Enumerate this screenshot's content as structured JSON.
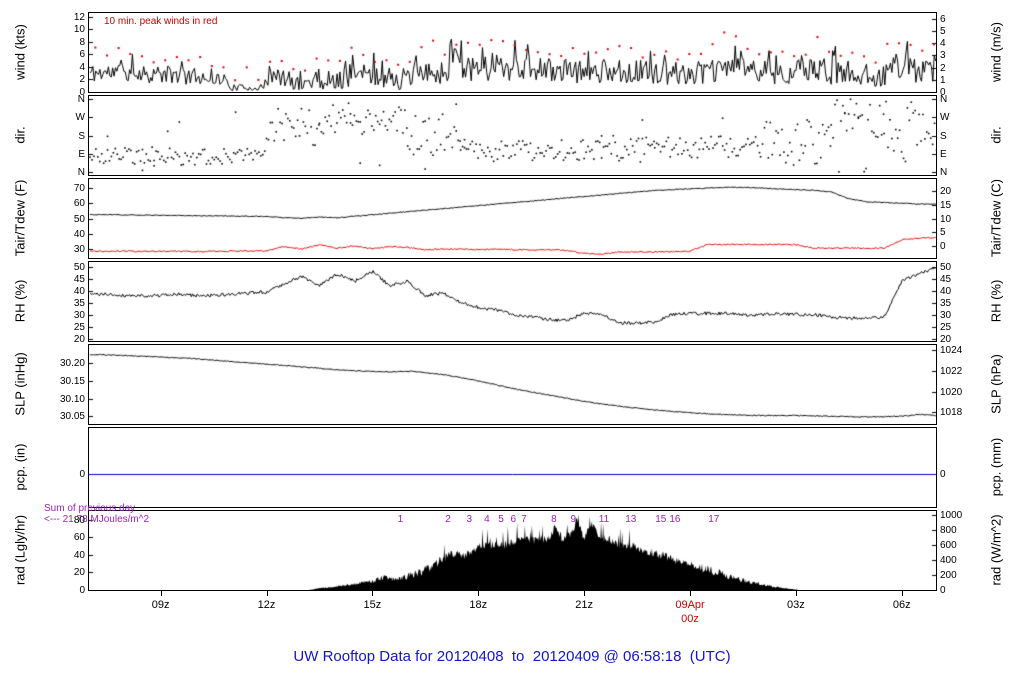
{
  "title": "UW Rooftop Data for 20120408  to  20120409 @ 06:58:18  (UTC)",
  "colors": {
    "title_blue": "#1414cc",
    "annotation_red": "#cc0000",
    "peak_red": "#e00000",
    "purple": "#a020c0",
    "precip_blue": "#0000cc",
    "trace_black": "#000000"
  },
  "chart_data": {
    "type": "line",
    "title": "UW Rooftop Data for 20120408  to  20120409 @ 06:58:18  (UTC)",
    "x_axis": {
      "start": 6.97,
      "end": 30.97,
      "ticks": [
        {
          "h": 9,
          "label": "09z"
        },
        {
          "h": 12,
          "label": "12z"
        },
        {
          "h": 15,
          "label": "15z"
        },
        {
          "h": 18,
          "label": "18z"
        },
        {
          "h": 21,
          "label": "21z"
        },
        {
          "h": 24,
          "label": "09Apr",
          "label2": "00z",
          "color": "#cc0000"
        },
        {
          "h": 27,
          "label": "03z"
        },
        {
          "h": 30,
          "label": "06z"
        }
      ]
    },
    "panels": [
      {
        "id": "wind",
        "ylabel_left": "wind (kts)",
        "ylabel_right": "wind (m/s)",
        "ylim": [
          0,
          12.6
        ],
        "annotation": "10 min. peak winds in red",
        "yticks_left": [
          [
            0,
            "0"
          ],
          [
            2,
            "2"
          ],
          [
            4,
            "4"
          ],
          [
            6,
            "6"
          ],
          [
            8,
            "8"
          ],
          [
            10,
            "10"
          ],
          [
            12,
            "12"
          ]
        ],
        "yticks_right": [
          [
            0,
            "0"
          ],
          [
            1.944,
            "1"
          ],
          [
            3.889,
            "2"
          ],
          [
            5.833,
            "3"
          ],
          [
            7.778,
            "4"
          ],
          [
            9.722,
            "5"
          ],
          [
            11.667,
            "6"
          ]
        ],
        "series": [
          {
            "name": "wind-speed",
            "type": "noisy-line",
            "color": "#000000",
            "seed": 11,
            "dt": 0.04,
            "t": [
              7,
              8,
              9,
              10,
              10.8,
              11.0,
              11.9,
              12.1,
              12.6,
              13.0,
              13.4,
              13.8,
              14.3,
              15,
              16,
              16.8,
              17.5,
              18.2,
              19,
              20,
              21,
              22,
              23,
              24,
              24.8,
              25.3,
              25.8,
              26.5,
              27.5,
              28.5,
              29.3,
              30.0,
              30.6,
              31
            ],
            "mean": [
              3,
              3.2,
              2.8,
              2.5,
              2.0,
              0.7,
              0.7,
              2.5,
              2.0,
              1.0,
              2.5,
              1.2,
              2.8,
              2.5,
              2.0,
              3.0,
              4.2,
              4.5,
              4.0,
              3.5,
              3.2,
              3.5,
              3.0,
              3.0,
              3.2,
              5.0,
              3.5,
              3.0,
              3.5,
              3.0,
              2.5,
              4.5,
              3.0,
              3.5
            ],
            "amp": [
              1.5,
              1.5,
              1.5,
              1.3,
              1.0,
              0.5,
              0.5,
              1.5,
              1.5,
              1.0,
              2.0,
              1.2,
              2.0,
              1.8,
              1.8,
              2.0,
              2.5,
              2.8,
              2.2,
              2.0,
              1.8,
              2.0,
              1.8,
              1.8,
              2.0,
              2.8,
              2.0,
              1.8,
              2.2,
              2.0,
              1.8,
              2.5,
              2.0,
              2.0
            ]
          },
          {
            "name": "wind-peaks",
            "type": "peak-dots",
            "color": "#e00000",
            "seed": 12,
            "step": 0.33
          }
        ]
      },
      {
        "id": "direction",
        "ylabel_left": "dir.",
        "ylabel_right": "dir.",
        "ylim": [
          -14,
          374
        ],
        "yticks_left": [
          [
            360,
            "N"
          ],
          [
            270,
            "W"
          ],
          [
            180,
            "S"
          ],
          [
            90,
            "E"
          ],
          [
            0,
            "N"
          ]
        ],
        "yticks_right": [
          [
            360,
            "N"
          ],
          [
            270,
            "W"
          ],
          [
            180,
            "S"
          ],
          [
            90,
            "E"
          ],
          [
            0,
            "N"
          ]
        ],
        "series": [
          {
            "name": "wind-direction",
            "type": "dir-scatter",
            "color": "#000000",
            "seed": 21,
            "step": 0.055,
            "segments": [
              [
                7,
                12,
                80,
                45
              ],
              [
                12,
                13.5,
                230,
                100
              ],
              [
                13.5,
                16,
                260,
                80
              ],
              [
                16,
                17.5,
                180,
                110
              ],
              [
                17.5,
                21,
                105,
                55
              ],
              [
                21,
                23,
                115,
                65
              ],
              [
                23,
                26,
                125,
                55
              ],
              [
                26,
                28,
                150,
                115
              ],
              [
                28,
                29.5,
                260,
                120
              ],
              [
                29.5,
                31,
                200,
                150
              ]
            ]
          }
        ]
      },
      {
        "id": "temperature",
        "ylabel_left": "Tair/Tdew (F)",
        "ylabel_right": "Tair/Tdew (C)",
        "ylim": [
          24,
          76
        ],
        "yticks_left": [
          [
            30,
            "30"
          ],
          [
            40,
            "40"
          ],
          [
            50,
            "50"
          ],
          [
            60,
            "60"
          ],
          [
            70,
            "70"
          ]
        ],
        "yticks_right": [
          [
            32,
            "0"
          ],
          [
            41,
            "5"
          ],
          [
            50,
            "10"
          ],
          [
            59,
            "15"
          ],
          [
            68,
            "20"
          ]
        ],
        "series": [
          {
            "name": "air-temperature",
            "type": "line",
            "color": "#000000",
            "noise": 0.25,
            "seed": 31,
            "t0": 7,
            "dt": 0.5,
            "v": [
              52.5,
              52.5,
              52.3,
              52.2,
              52.0,
              52.0,
              51.8,
              51.8,
              51.6,
              51.5,
              51.3,
              50.6,
              50.2,
              51.0,
              50.5,
              51.5,
              52.5,
              53.5,
              54.5,
              55.5,
              56.5,
              57.5,
              58.5,
              59.5,
              60.5,
              61.5,
              62.5,
              63.5,
              64.5,
              65.5,
              66.5,
              67.5,
              68.5,
              69.0,
              69.5,
              70.0,
              70.5,
              70.5,
              70.0,
              69.5,
              69.0,
              68.5,
              67.5,
              63.0,
              61.0,
              60.5,
              60.0,
              59.5,
              59.5
            ]
          },
          {
            "name": "dew-point",
            "type": "line",
            "color": "#e00000",
            "noise": 0.4,
            "seed": 32,
            "t0": 7,
            "dt": 0.5,
            "v": [
              28.5,
              28.4,
              28.5,
              28.3,
              28.4,
              28.5,
              28.3,
              28.4,
              28.5,
              28.6,
              28.8,
              31.5,
              30.0,
              32.5,
              30.5,
              32.0,
              30.0,
              31.5,
              31.0,
              29.5,
              29.8,
              30.0,
              29.5,
              29.8,
              29.5,
              29.3,
              29.5,
              29.0,
              27.0,
              26.5,
              28.0,
              28.2,
              28.0,
              28.2,
              28.5,
              33.0,
              32.8,
              33.0,
              32.8,
              33.0,
              32.8,
              30.5,
              30.3,
              30.5,
              30.4,
              30.5,
              36.0,
              37.0,
              37.5
            ]
          }
        ]
      },
      {
        "id": "humidity",
        "ylabel_left": "RH (%)",
        "ylabel_right": "RH (%)",
        "ylim": [
          19,
          52
        ],
        "yticks_left": [
          [
            20,
            "20"
          ],
          [
            25,
            "25"
          ],
          [
            30,
            "30"
          ],
          [
            35,
            "35"
          ],
          [
            40,
            "40"
          ],
          [
            45,
            "45"
          ],
          [
            50,
            "50"
          ]
        ],
        "yticks_right": [
          [
            20,
            "20"
          ],
          [
            25,
            "25"
          ],
          [
            30,
            "30"
          ],
          [
            35,
            "35"
          ],
          [
            40,
            "40"
          ],
          [
            45,
            "45"
          ],
          [
            50,
            "50"
          ]
        ],
        "series": [
          {
            "name": "relative-humidity",
            "type": "line",
            "color": "#000000",
            "noise": 0.7,
            "seed": 41,
            "t0": 7,
            "dt": 0.5,
            "v": [
              38.5,
              38.5,
              38.0,
              38.0,
              38.0,
              38.5,
              38.0,
              38.0,
              38.5,
              39.0,
              39.5,
              43.0,
              46.0,
              42.0,
              47.0,
              44.0,
              48.0,
              42.0,
              44.0,
              38.0,
              39.0,
              35.0,
              33.0,
              32.0,
              30.0,
              29.0,
              28.0,
              27.5,
              30.5,
              30.0,
              26.5,
              26.5,
              27.0,
              30.0,
              30.5,
              30.5,
              30.5,
              30.0,
              30.0,
              30.5,
              30.0,
              30.0,
              29.0,
              28.5,
              28.5,
              29.0,
              44.0,
              47.0,
              50.0
            ]
          }
        ]
      },
      {
        "id": "pressure",
        "ylabel_left": "SLP (inHg)",
        "ylabel_right": "SLP (hPa)",
        "ylim": [
          30.028,
          30.252
        ],
        "yticks_left": [
          [
            30.05,
            "30.05"
          ],
          [
            30.1,
            "30.10"
          ],
          [
            30.15,
            "30.15"
          ],
          [
            30.2,
            "30.20"
          ]
        ],
        "yticks_right": [
          [
            30.061,
            "1018"
          ],
          [
            30.12,
            "1020"
          ],
          [
            30.179,
            "1022"
          ],
          [
            30.238,
            "1024"
          ]
        ],
        "series": [
          {
            "name": "sea-level-pressure",
            "type": "line",
            "color": "#000000",
            "noise": 0.0012,
            "seed": 51,
            "t0": 7,
            "dt": 0.5,
            "v": [
              30.225,
              30.224,
              30.222,
              30.22,
              30.218,
              30.216,
              30.213,
              30.209,
              30.205,
              30.201,
              30.198,
              30.194,
              30.19,
              30.186,
              30.182,
              30.179,
              30.177,
              30.176,
              30.178,
              30.174,
              30.168,
              30.16,
              30.15,
              30.139,
              30.128,
              30.119,
              30.11,
              30.101,
              30.092,
              30.085,
              30.078,
              30.073,
              30.068,
              30.064,
              30.06,
              30.057,
              30.055,
              30.053,
              30.052,
              30.052,
              30.052,
              30.051,
              30.05,
              30.049,
              30.048,
              30.049,
              30.05,
              30.055,
              30.052
            ]
          }
        ]
      },
      {
        "id": "precip",
        "ylabel_left": "pcp. (in)",
        "ylabel_right": "pcp. (mm)",
        "ylim": [
          -0.75,
          1.05
        ],
        "yticks_left": [
          [
            0,
            "0"
          ]
        ],
        "yticks_right": [
          [
            0,
            "0"
          ]
        ],
        "series": [
          {
            "name": "precipitation",
            "type": "hline",
            "color": "#0000cc",
            "v": 0
          }
        ]
      },
      {
        "id": "radiation",
        "ylabel_left": "rad (Lgly/hr)",
        "ylabel_right": "rad (W/m^2)",
        "ylim": [
          0,
          90
        ],
        "sum_line1": "Sum of previous day",
        "sum_line2": "<--- 21.78 MJoules/m^2",
        "hour_markers": [
          {
            "h": 15.8,
            "label": "1"
          },
          {
            "h": 17.15,
            "label": "2"
          },
          {
            "h": 17.75,
            "label": "3"
          },
          {
            "h": 18.25,
            "label": "4"
          },
          {
            "h": 18.65,
            "label": "5"
          },
          {
            "h": 19.0,
            "label": "6"
          },
          {
            "h": 19.3,
            "label": "7"
          },
          {
            "h": 20.15,
            "label": "8"
          },
          {
            "h": 20.7,
            "label": "9"
          },
          {
            "h": 21.5,
            "label": "11"
          },
          {
            "h": 22.25,
            "label": "13"
          },
          {
            "h": 23.1,
            "label": "15"
          },
          {
            "h": 23.5,
            "label": "16"
          },
          {
            "h": 24.6,
            "label": "17"
          }
        ],
        "yticks_left": [
          [
            0,
            "0"
          ],
          [
            20,
            "20"
          ],
          [
            40,
            "40"
          ],
          [
            60,
            "60"
          ],
          [
            80,
            "80"
          ]
        ],
        "yticks_right": [
          [
            0,
            "0"
          ],
          [
            17.2,
            "200"
          ],
          [
            34.4,
            "400"
          ],
          [
            51.6,
            "600"
          ],
          [
            68.8,
            "800"
          ],
          [
            86,
            "1000"
          ]
        ],
        "series": [
          {
            "name": "solar-radiation",
            "type": "fill",
            "color": "#000000",
            "noise": 5,
            "seed": 71,
            "t": [
              13.2,
              13.5,
              14,
              14.5,
              15,
              15.3,
              15.6,
              16,
              16.3,
              16.6,
              17,
              17.3,
              17.6,
              18,
              18.3,
              18.6,
              19,
              19.3,
              19.6,
              20,
              20.2,
              20.4,
              20.6,
              20.8,
              21,
              21.2,
              21.4,
              21.6,
              21.8,
              22,
              22.3,
              22.6,
              23,
              23.3,
              23.6,
              24,
              24.3,
              24.6,
              25,
              25.3,
              25.6,
              26,
              26.3,
              26.6,
              26.9,
              27.1
            ],
            "v": [
              0,
              2,
              4,
              7,
              10,
              14,
              12,
              16,
              20,
              25,
              35,
              42,
              40,
              48,
              52,
              50,
              55,
              58,
              56,
              60,
              72,
              58,
              65,
              78,
              60,
              75,
              62,
              58,
              55,
              52,
              50,
              47,
              42,
              38,
              34,
              30,
              26,
              22,
              17,
              13,
              10,
              7,
              4.5,
              2.5,
              1,
              0
            ]
          }
        ]
      }
    ]
  }
}
